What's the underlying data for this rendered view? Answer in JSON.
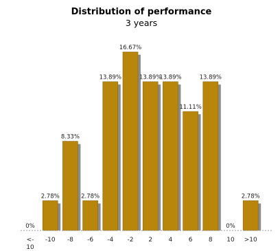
{
  "chart_data": {
    "type": "bar",
    "title": "Distribution of performance",
    "subtitle": "3 years",
    "categories": [
      "<-\n10",
      "-10",
      "-8",
      "-6",
      "-4",
      "-2",
      "2",
      "4",
      "6",
      "8",
      "10",
      ">10"
    ],
    "values": [
      0,
      2.78,
      8.33,
      2.78,
      13.89,
      16.67,
      13.89,
      13.89,
      11.11,
      13.89,
      0,
      2.78
    ],
    "value_labels": [
      "0%",
      "2.78%",
      "8.33%",
      "2.78%",
      "13.89%",
      "16.67%",
      "13.89%",
      "13.89%",
      "11.11%",
      "13.89%",
      "0%",
      "2.78%"
    ],
    "ylim": [
      0,
      16.67
    ],
    "grid": false,
    "legend": "none",
    "colors": {
      "bar": "#b8860b",
      "bar_edge": "#8a6508",
      "shadow": "#8c8c8c",
      "axis": "#999999"
    }
  }
}
